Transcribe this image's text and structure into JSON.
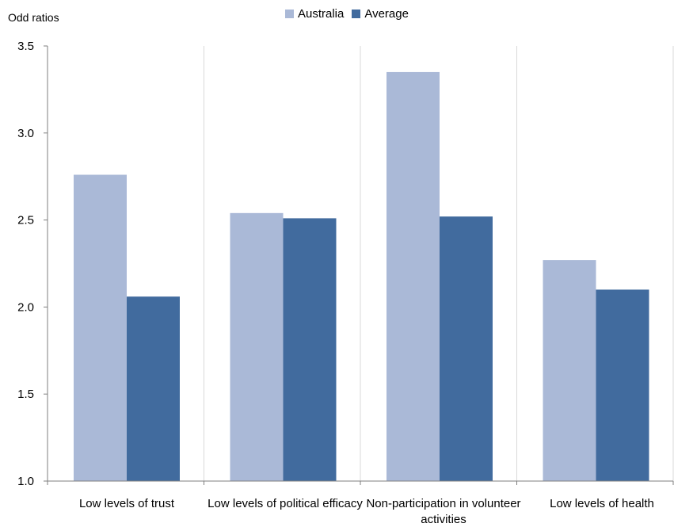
{
  "chart_data": {
    "type": "bar",
    "ylabel": "Odd ratios",
    "ylim": [
      1.0,
      3.5
    ],
    "yticks": [
      "1.0",
      "1.5",
      "2.0",
      "2.5",
      "3.0",
      "3.5"
    ],
    "ytick_values": [
      1.0,
      1.5,
      2.0,
      2.5,
      3.0,
      3.5
    ],
    "categories": [
      "Low levels of trust",
      "Low levels of political efficacy",
      "Non-participation in volunteer activities",
      "Low levels of health"
    ],
    "series": [
      {
        "name": "Australia",
        "color": "#aab9d7",
        "values": [
          2.76,
          2.54,
          3.35,
          2.27
        ]
      },
      {
        "name": "Average",
        "color": "#416b9e",
        "values": [
          2.06,
          2.51,
          2.52,
          2.1
        ]
      }
    ],
    "grid": "vertical",
    "legend_position": "top-center"
  }
}
